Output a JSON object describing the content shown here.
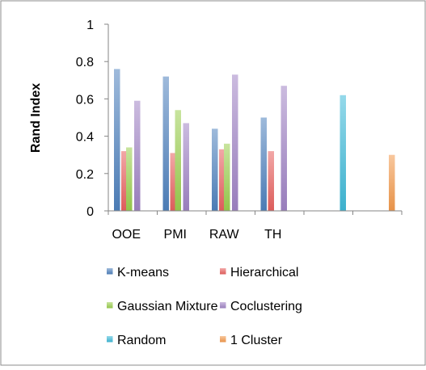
{
  "chart_data": {
    "type": "bar",
    "title": "",
    "xlabel": "",
    "ylabel": "Rand Index",
    "ylim": [
      0,
      1
    ],
    "yticks": [
      "0",
      "0.2",
      "0.4",
      "0.6",
      "0.8",
      "1"
    ],
    "ytick_values": [
      0,
      0.2,
      0.4,
      0.6,
      0.8,
      1
    ],
    "grid": false,
    "legend_position": "bottom",
    "categories": [
      "OOE",
      "PMI",
      "RAW",
      "TH",
      "",
      ""
    ],
    "series": [
      {
        "name": "K-means",
        "color": "#4f81bd",
        "values": [
          0.76,
          0.72,
          0.44,
          0.5,
          null,
          null
        ]
      },
      {
        "name": "Hierarchical",
        "color": "#e8615f",
        "values": [
          0.32,
          0.31,
          0.33,
          0.32,
          null,
          null
        ]
      },
      {
        "name": "Gaussian Mixture",
        "color": "#9bce4e",
        "values": [
          0.34,
          0.54,
          0.36,
          null,
          null,
          null
        ]
      },
      {
        "name": "Coclustering",
        "color": "#a084c5",
        "values": [
          0.59,
          0.47,
          0.73,
          0.67,
          null,
          null
        ]
      },
      {
        "name": "Random",
        "color": "#3fb9d8",
        "values": [
          null,
          null,
          null,
          null,
          0.62,
          null
        ]
      },
      {
        "name": "1 Cluster",
        "color": "#f39a4c",
        "values": [
          null,
          null,
          null,
          null,
          null,
          0.3
        ]
      }
    ]
  }
}
